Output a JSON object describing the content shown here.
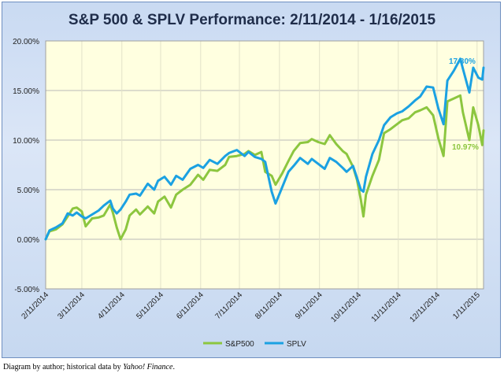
{
  "chart_data": {
    "type": "line",
    "title": "S&P 500 & SPLV Performance: 2/11/2014 - 1/16/2015",
    "xlabel": "",
    "ylabel": "",
    "x_range": [
      "2/11/2014",
      "1/16/2015"
    ],
    "x_ticks": [
      "2/11/2014",
      "3/11/2014",
      "4/11/2014",
      "5/11/2014",
      "6/11/2014",
      "7/11/2014",
      "8/11/2014",
      "9/11/2014",
      "10/11/2014",
      "11/11/2014",
      "12/11/2014",
      "1/11/2015"
    ],
    "y_ticks": [
      "-5.00%",
      "0.00%",
      "5.00%",
      "10.00%",
      "15.00%",
      "20.00%"
    ],
    "ylim": [
      -5,
      20
    ],
    "grid": "horizontal",
    "legend": "bottom",
    "series": [
      {
        "name": "S&P500",
        "color": "#8cc63f",
        "points": [
          [
            "2/11/2014",
            0.0
          ],
          [
            "2/14/2014",
            0.8
          ],
          [
            "2/19/2014",
            1.0
          ],
          [
            "2/24/2014",
            1.5
          ],
          [
            "2/28/2014",
            2.3
          ],
          [
            "3/4/2014",
            3.1
          ],
          [
            "3/7/2014",
            3.2
          ],
          [
            "3/11/2014",
            2.8
          ],
          [
            "3/14/2014",
            1.3
          ],
          [
            "3/19/2014",
            2.1
          ],
          [
            "3/24/2014",
            2.2
          ],
          [
            "3/28/2014",
            2.4
          ],
          [
            "4/2/2014",
            3.5
          ],
          [
            "4/4/2014",
            2.7
          ],
          [
            "4/7/2014",
            1.2
          ],
          [
            "4/10/2014",
            0.0
          ],
          [
            "4/14/2014",
            1.0
          ],
          [
            "4/17/2014",
            2.4
          ],
          [
            "4/22/2014",
            3.0
          ],
          [
            "4/25/2014",
            2.5
          ],
          [
            "5/1/2014",
            3.3
          ],
          [
            "5/6/2014",
            2.6
          ],
          [
            "5/9/2014",
            3.8
          ],
          [
            "5/14/2014",
            4.3
          ],
          [
            "5/19/2014",
            3.2
          ],
          [
            "5/23/2014",
            4.5
          ],
          [
            "5/28/2014",
            5.0
          ],
          [
            "6/3/2014",
            5.5
          ],
          [
            "6/9/2014",
            6.5
          ],
          [
            "6/13/2014",
            6.0
          ],
          [
            "6/18/2014",
            7.0
          ],
          [
            "6/24/2014",
            6.9
          ],
          [
            "6/30/2014",
            7.5
          ],
          [
            "7/3/2014",
            8.3
          ],
          [
            "7/9/2014",
            8.4
          ],
          [
            "7/15/2014",
            8.6
          ],
          [
            "7/18/2014",
            8.9
          ],
          [
            "7/23/2014",
            8.5
          ],
          [
            "7/28/2014",
            8.8
          ],
          [
            "7/31/2014",
            6.8
          ],
          [
            "8/5/2014",
            6.4
          ],
          [
            "8/8/2014",
            5.5
          ],
          [
            "8/13/2014",
            6.6
          ],
          [
            "8/18/2014",
            7.9
          ],
          [
            "8/22/2014",
            8.9
          ],
          [
            "8/27/2014",
            9.7
          ],
          [
            "9/2/2014",
            9.8
          ],
          [
            "9/5/2014",
            10.1
          ],
          [
            "9/10/2014",
            9.8
          ],
          [
            "9/15/2014",
            9.6
          ],
          [
            "9/19/2014",
            10.5
          ],
          [
            "9/24/2014",
            9.6
          ],
          [
            "9/29/2014",
            8.9
          ],
          [
            "10/2/2014",
            8.6
          ],
          [
            "10/7/2014",
            7.3
          ],
          [
            "10/10/2014",
            6.0
          ],
          [
            "10/13/2014",
            4.0
          ],
          [
            "10/15/2014",
            2.3
          ],
          [
            "10/17/2014",
            4.5
          ],
          [
            "10/22/2014",
            6.4
          ],
          [
            "10/27/2014",
            8.0
          ],
          [
            "10/31/2014",
            10.7
          ],
          [
            "11/5/2014",
            11.1
          ],
          [
            "11/10/2014",
            11.6
          ],
          [
            "11/14/2014",
            12.0
          ],
          [
            "11/19/2014",
            12.2
          ],
          [
            "11/24/2014",
            12.8
          ],
          [
            "11/28/2014",
            13.0
          ],
          [
            "12/3/2014",
            13.3
          ],
          [
            "12/8/2014",
            12.5
          ],
          [
            "12/12/2014",
            10.2
          ],
          [
            "12/16/2014",
            8.4
          ],
          [
            "12/19/2014",
            13.9
          ],
          [
            "12/24/2014",
            14.2
          ],
          [
            "12/29/2014",
            14.5
          ],
          [
            "12/31/2014",
            12.8
          ],
          [
            "1/5/2015",
            10.0
          ],
          [
            "1/8/2015",
            13.3
          ],
          [
            "1/12/2015",
            11.5
          ],
          [
            "1/15/2015",
            9.5
          ],
          [
            "1/16/2015",
            10.97
          ]
        ]
      },
      {
        "name": "SPLV",
        "color": "#1ba1e2",
        "points": [
          [
            "2/11/2014",
            0.0
          ],
          [
            "2/14/2014",
            0.9
          ],
          [
            "2/19/2014",
            1.2
          ],
          [
            "2/24/2014",
            1.6
          ],
          [
            "2/28/2014",
            2.6
          ],
          [
            "3/4/2014",
            2.4
          ],
          [
            "3/7/2014",
            2.7
          ],
          [
            "3/11/2014",
            2.3
          ],
          [
            "3/14/2014",
            2.1
          ],
          [
            "3/19/2014",
            2.5
          ],
          [
            "3/24/2014",
            2.9
          ],
          [
            "3/28/2014",
            3.4
          ],
          [
            "4/2/2014",
            3.9
          ],
          [
            "4/4/2014",
            3.1
          ],
          [
            "4/7/2014",
            2.6
          ],
          [
            "4/10/2014",
            3.0
          ],
          [
            "4/14/2014",
            3.8
          ],
          [
            "4/17/2014",
            4.5
          ],
          [
            "4/22/2014",
            4.6
          ],
          [
            "4/25/2014",
            4.4
          ],
          [
            "5/1/2014",
            5.6
          ],
          [
            "5/6/2014",
            5.0
          ],
          [
            "5/9/2014",
            5.9
          ],
          [
            "5/14/2014",
            6.3
          ],
          [
            "5/19/2014",
            5.5
          ],
          [
            "5/23/2014",
            6.4
          ],
          [
            "5/28/2014",
            6.0
          ],
          [
            "6/3/2014",
            7.1
          ],
          [
            "6/9/2014",
            7.5
          ],
          [
            "6/13/2014",
            7.2
          ],
          [
            "6/18/2014",
            8.0
          ],
          [
            "6/24/2014",
            7.6
          ],
          [
            "6/30/2014",
            8.4
          ],
          [
            "7/3/2014",
            8.7
          ],
          [
            "7/9/2014",
            9.0
          ],
          [
            "7/15/2014",
            8.4
          ],
          [
            "7/18/2014",
            8.8
          ],
          [
            "7/23/2014",
            8.3
          ],
          [
            "7/28/2014",
            8.1
          ],
          [
            "7/31/2014",
            7.8
          ],
          [
            "8/5/2014",
            4.8
          ],
          [
            "8/8/2014",
            3.6
          ],
          [
            "8/13/2014",
            5.2
          ],
          [
            "8/18/2014",
            6.8
          ],
          [
            "8/22/2014",
            7.4
          ],
          [
            "8/27/2014",
            8.2
          ],
          [
            "9/2/2014",
            7.6
          ],
          [
            "9/5/2014",
            8.1
          ],
          [
            "9/10/2014",
            7.6
          ],
          [
            "9/15/2014",
            7.1
          ],
          [
            "9/19/2014",
            8.2
          ],
          [
            "9/24/2014",
            7.8
          ],
          [
            "9/29/2014",
            7.2
          ],
          [
            "10/2/2014",
            6.8
          ],
          [
            "10/7/2014",
            7.4
          ],
          [
            "10/10/2014",
            6.2
          ],
          [
            "10/13/2014",
            5.0
          ],
          [
            "10/15/2014",
            4.8
          ],
          [
            "10/17/2014",
            6.3
          ],
          [
            "10/22/2014",
            8.6
          ],
          [
            "10/27/2014",
            10.0
          ],
          [
            "10/31/2014",
            11.5
          ],
          [
            "11/5/2014",
            12.3
          ],
          [
            "11/10/2014",
            12.7
          ],
          [
            "11/14/2014",
            12.9
          ],
          [
            "11/19/2014",
            13.4
          ],
          [
            "11/24/2014",
            14.0
          ],
          [
            "11/28/2014",
            14.4
          ],
          [
            "12/3/2014",
            15.4
          ],
          [
            "12/8/2014",
            15.3
          ],
          [
            "12/12/2014",
            13.2
          ],
          [
            "12/16/2014",
            11.6
          ],
          [
            "12/19/2014",
            16.0
          ],
          [
            "12/24/2014",
            17.0
          ],
          [
            "12/29/2014",
            18.2
          ],
          [
            "12/31/2014",
            17.2
          ],
          [
            "1/5/2015",
            14.8
          ],
          [
            "1/8/2015",
            17.3
          ],
          [
            "1/12/2015",
            16.3
          ],
          [
            "1/15/2015",
            16.1
          ],
          [
            "1/16/2015",
            17.3
          ]
        ]
      }
    ],
    "annotations": [
      {
        "series": "SPLV",
        "date": "1/16/2015",
        "label": "17.30%"
      },
      {
        "series": "S&P500",
        "date": "1/16/2015",
        "label": "10.97%"
      }
    ]
  },
  "colors": {
    "frame_bg": "#dbe6f7",
    "plot_bg": "#ffffe0",
    "grid": "#b9b9b9",
    "title": "#1f2d4a"
  },
  "caption": {
    "prefix": "Diagram by author; historical data by",
    "source": "Yahoo! Finance",
    "suffix": "."
  }
}
